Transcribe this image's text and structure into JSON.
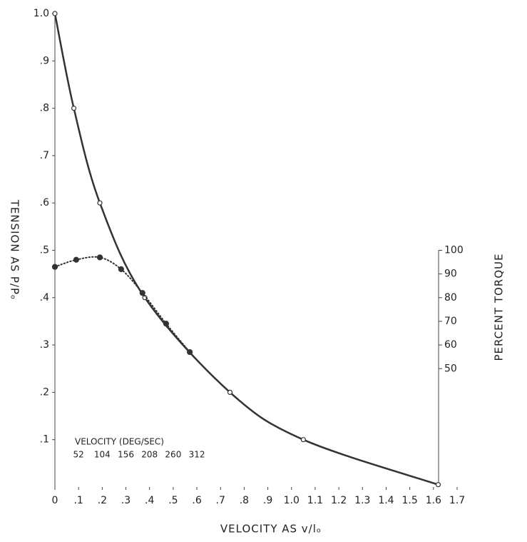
{
  "chart_data": {
    "type": "line",
    "x_label": "VELOCITY AS v/lₒ",
    "y_label": "TENSION AS P/Pₒ",
    "y2_label": "PERCENT TORQUE",
    "xlim": [
      0,
      1.7
    ],
    "ylim": [
      0,
      1.0
    ],
    "y2lim": [
      0,
      100
    ],
    "xticks": [
      0,
      {
        "value": 0.1,
        "label": ".1"
      },
      {
        "value": 0.2,
        "label": ".2"
      },
      {
        "value": 0.3,
        "label": ".3"
      },
      {
        "value": 0.4,
        "label": ".4"
      },
      {
        "value": 0.5,
        "label": ".5"
      },
      {
        "value": 0.6,
        "label": ".6"
      },
      {
        "value": 0.7,
        "label": ".7"
      },
      {
        "value": 0.8,
        "label": ".8"
      },
      {
        "value": 0.9,
        "label": ".9"
      },
      {
        "value": 1.0,
        "label": "1.0"
      },
      1.1,
      1.2,
      1.3,
      1.4,
      1.5,
      1.6,
      1.7
    ],
    "yticks": [
      {
        "value": 0.1,
        "label": ".1"
      },
      {
        "value": 0.2,
        "label": ".2"
      },
      {
        "value": 0.3,
        "label": ".3"
      },
      {
        "value": 0.4,
        "label": ".4"
      },
      {
        "value": 0.5,
        "label": ".5"
      },
      {
        "value": 0.6,
        "label": ".6"
      },
      {
        "value": 0.7,
        "label": ".7"
      },
      {
        "value": 0.8,
        "label": ".8"
      },
      {
        "value": 0.9,
        "label": ".9"
      },
      {
        "value": 1.0,
        "label": "1.0"
      }
    ],
    "y2ticks": [
      50,
      60,
      70,
      80,
      90,
      100
    ],
    "secondary_scale": {
      "label": "VELOCITY (DEG/SEC)",
      "ticks": [
        52,
        104,
        156,
        208,
        260,
        312
      ]
    },
    "series": [
      {
        "name": "tension",
        "color": "#333",
        "style": "solid",
        "marker": "open",
        "x": [
          0,
          0.08,
          0.19,
          0.38,
          0.74,
          1.05,
          1.62
        ],
        "values": [
          1.0,
          0.8,
          0.6,
          0.4,
          0.2,
          0.1,
          0.005
        ]
      },
      {
        "name": "torque",
        "color": "#333",
        "style": "dotted",
        "marker": "filled",
        "axis": "y2",
        "x": [
          0,
          0.09,
          0.19,
          0.28,
          0.37,
          0.47,
          0.57
        ],
        "values": [
          93,
          96,
          97,
          92,
          82,
          69,
          57
        ]
      }
    ]
  }
}
